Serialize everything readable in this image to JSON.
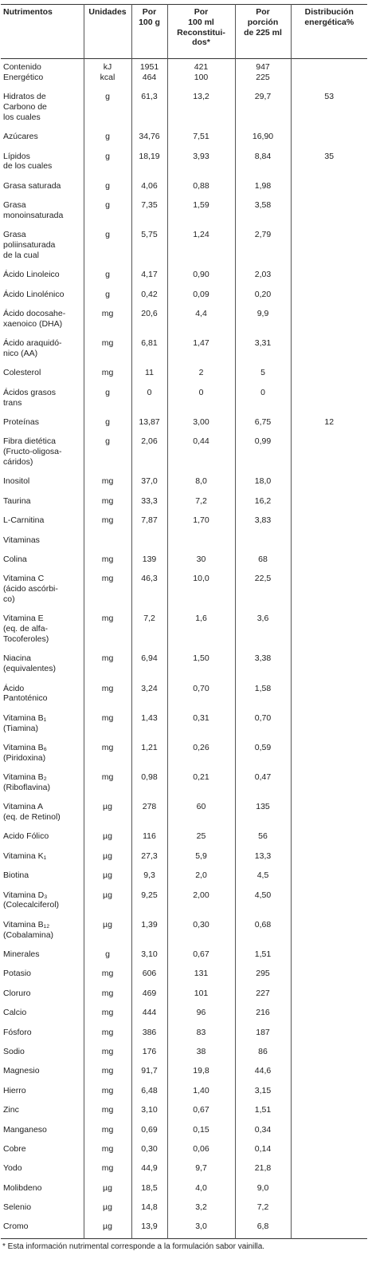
{
  "table": {
    "header": [
      "Nutrimentos",
      "Unidades",
      "Por\n100 g",
      "Por\n100 ml\nReconstitui-\ndos*",
      "Por\nporción\nde 225 ml",
      "Distribución\nenergética%"
    ],
    "rows": [
      {
        "nutrimento": "Contenido\nEnergético",
        "unidades": "kJ\nkcal",
        "por_100g": "1951\n464",
        "por_100ml": "421\n100",
        "por_porcion": "947\n225"
      },
      {
        "nutrimento": "Hidratos de\nCarbono de\nlos cuales",
        "unidades": "g",
        "por_100g": "61,3",
        "por_100ml": "13,2",
        "por_porcion": "29,7",
        "distribucion": "53"
      },
      {
        "nutrimento": "Azúcares",
        "unidades": "g",
        "por_100g": "34,76",
        "por_100ml": "7,51",
        "por_porcion": "16,90"
      },
      {
        "nutrimento": "Lípidos\nde los cuales",
        "unidades": "g",
        "por_100g": "18,19",
        "por_100ml": "3,93",
        "por_porcion": "8,84",
        "distribucion": "35"
      },
      {
        "nutrimento": "Grasa saturada",
        "unidades": "g",
        "por_100g": "4,06",
        "por_100ml": "0,88",
        "por_porcion": "1,98"
      },
      {
        "nutrimento": "Grasa\nmonoinsaturada",
        "unidades": "g",
        "por_100g": "7,35",
        "por_100ml": "1,59",
        "por_porcion": "3,58"
      },
      {
        "nutrimento": "Grasa\npoliinsaturada\nde la cual",
        "unidades": "g",
        "por_100g": "5,75",
        "por_100ml": "1,24",
        "por_porcion": "2,79"
      },
      {
        "nutrimento": "Ácido Linoleico",
        "unidades": "g",
        "por_100g": "4,17",
        "por_100ml": "0,90",
        "por_porcion": "2,03"
      },
      {
        "nutrimento": "Ácido Linolénico",
        "unidades": "g",
        "por_100g": "0,42",
        "por_100ml": "0,09",
        "por_porcion": "0,20"
      },
      {
        "nutrimento": "Ácido docosahe-\nxaenoico (DHA)",
        "unidades": "mg",
        "por_100g": "20,6",
        "por_100ml": "4,4",
        "por_porcion": "9,9"
      },
      {
        "nutrimento": "Ácido araquidó-\nnico (AA)",
        "unidades": "mg",
        "por_100g": "6,81",
        "por_100ml": "1,47",
        "por_porcion": "3,31"
      },
      {
        "nutrimento": "Colesterol",
        "unidades": "mg",
        "por_100g": "11",
        "por_100ml": "2",
        "por_porcion": "5"
      },
      {
        "nutrimento": "Ácidos grasos\ntrans",
        "unidades": "g",
        "por_100g": "0",
        "por_100ml": "0",
        "por_porcion": "0"
      },
      {
        "nutrimento": "Proteínas",
        "unidades": "g",
        "por_100g": "13,87",
        "por_100ml": "3,00",
        "por_porcion": "6,75",
        "distribucion": "12"
      },
      {
        "nutrimento": "Fibra dietética\n(Fructo-oligosa-\ncáridos)",
        "unidades": "g",
        "por_100g": "2,06",
        "por_100ml": "0,44",
        "por_porcion": "0,99"
      },
      {
        "nutrimento": "Inositol",
        "unidades": "mg",
        "por_100g": "37,0",
        "por_100ml": "8,0",
        "por_porcion": "18,0"
      },
      {
        "nutrimento": "Taurina",
        "unidades": "mg",
        "por_100g": "33,3",
        "por_100ml": "7,2",
        "por_porcion": "16,2"
      },
      {
        "nutrimento": "L-Carnitina",
        "unidades": "mg",
        "por_100g": "7,87",
        "por_100ml": "1,70",
        "por_porcion": "3,83"
      },
      {
        "nutrimento": "Vitaminas"
      },
      {
        "nutrimento": "Colina",
        "unidades": "mg",
        "por_100g": "139",
        "por_100ml": "30",
        "por_porcion": "68"
      },
      {
        "nutrimento": "Vitamina C\n(ácido ascórbi-\nco)",
        "unidades": "mg",
        "por_100g": "46,3",
        "por_100ml": "10,0",
        "por_porcion": "22,5"
      },
      {
        "nutrimento": "Vitamina E\n(eq. de alfa-\nTocoferoles)",
        "unidades": "mg",
        "por_100g": "7,2",
        "por_100ml": "1,6",
        "por_porcion": "3,6"
      },
      {
        "nutrimento": "Niacina\n(equivalentes)",
        "unidades": "mg",
        "por_100g": "6,94",
        "por_100ml": "1,50",
        "por_porcion": "3,38"
      },
      {
        "nutrimento": "Ácido\nPantoténico",
        "unidades": "mg",
        "por_100g": "3,24",
        "por_100ml": "0,70",
        "por_porcion": "1,58"
      },
      {
        "nutrimento": "Vitamina B₁\n(Tiamina)",
        "unidades": "mg",
        "por_100g": "1,43",
        "por_100ml": "0,31",
        "por_porcion": "0,70"
      },
      {
        "nutrimento": "Vitamina B₆\n(Piridoxina)",
        "unidades": "mg",
        "por_100g": "1,21",
        "por_100ml": "0,26",
        "por_porcion": "0,59"
      },
      {
        "nutrimento": "Vitamina B₂\n(Riboflavina)",
        "unidades": "mg",
        "por_100g": "0,98",
        "por_100ml": "0,21",
        "por_porcion": "0,47"
      },
      {
        "nutrimento": "Vitamina A\n(eq. de Retinol)",
        "unidades": "µg",
        "por_100g": "278",
        "por_100ml": "60",
        "por_porcion": "135"
      },
      {
        "nutrimento": "Acido Fólico",
        "unidades": "µg",
        "por_100g": "116",
        "por_100ml": "25",
        "por_porcion": "56"
      },
      {
        "nutrimento": "Vitamina K₁",
        "unidades": "µg",
        "por_100g": "27,3",
        "por_100ml": "5,9",
        "por_porcion": "13,3"
      },
      {
        "nutrimento": "Biotina",
        "unidades": "µg",
        "por_100g": "9,3",
        "por_100ml": "2,0",
        "por_porcion": "4,5"
      },
      {
        "nutrimento": "Vitamina D₃\n(Colecalciferol)",
        "unidades": "µg",
        "por_100g": "9,25",
        "por_100ml": "2,00",
        "por_porcion": "4,50"
      },
      {
        "nutrimento": "Vitamina B₁₂\n(Cobalamina)",
        "unidades": "µg",
        "por_100g": "1,39",
        "por_100ml": "0,30",
        "por_porcion": "0,68"
      },
      {
        "nutrimento": "Minerales",
        "unidades": "g",
        "por_100g": "3,10",
        "por_100ml": "0,67",
        "por_porcion": "1,51"
      },
      {
        "nutrimento": "Potasio",
        "unidades": "mg",
        "por_100g": "606",
        "por_100ml": "131",
        "por_porcion": "295"
      },
      {
        "nutrimento": "Cloruro",
        "unidades": "mg",
        "por_100g": "469",
        "por_100ml": "101",
        "por_porcion": "227"
      },
      {
        "nutrimento": "Calcio",
        "unidades": "mg",
        "por_100g": "444",
        "por_100ml": "96",
        "por_porcion": "216"
      },
      {
        "nutrimento": "Fósforo",
        "unidades": "mg",
        "por_100g": "386",
        "por_100ml": "83",
        "por_porcion": "187"
      },
      {
        "nutrimento": "Sodio",
        "unidades": "mg",
        "por_100g": "176",
        "por_100ml": "38",
        "por_porcion": "86"
      },
      {
        "nutrimento": "Magnesio",
        "unidades": "mg",
        "por_100g": "91,7",
        "por_100ml": "19,8",
        "por_porcion": "44,6"
      },
      {
        "nutrimento": "Hierro",
        "unidades": "mg",
        "por_100g": "6,48",
        "por_100ml": "1,40",
        "por_porcion": "3,15"
      },
      {
        "nutrimento": "Zinc",
        "unidades": "mg",
        "por_100g": "3,10",
        "por_100ml": "0,67",
        "por_porcion": "1,51"
      },
      {
        "nutrimento": "Manganeso",
        "unidades": "mg",
        "por_100g": "0,69",
        "por_100ml": "0,15",
        "por_porcion": "0,34"
      },
      {
        "nutrimento": "Cobre",
        "unidades": "mg",
        "por_100g": "0,30",
        "por_100ml": "0,06",
        "por_porcion": "0,14"
      },
      {
        "nutrimento": "Yodo",
        "unidades": "mg",
        "por_100g": "44,9",
        "por_100ml": "9,7",
        "por_porcion": "21,8"
      },
      {
        "nutrimento": "Molibdeno",
        "unidades": "µg",
        "por_100g": "18,5",
        "por_100ml": "4,0",
        "por_porcion": "9,0"
      },
      {
        "nutrimento": "Selenio",
        "unidades": "µg",
        "por_100g": "14,8",
        "por_100ml": "3,2",
        "por_porcion": "7,2"
      },
      {
        "nutrimento": "Cromo",
        "unidades": "µg",
        "por_100g": "13,9",
        "por_100ml": "3,0",
        "por_porcion": "6,8"
      }
    ],
    "footnote": "* Esta información nutrimental corresponde a la formulación sabor vainilla."
  }
}
